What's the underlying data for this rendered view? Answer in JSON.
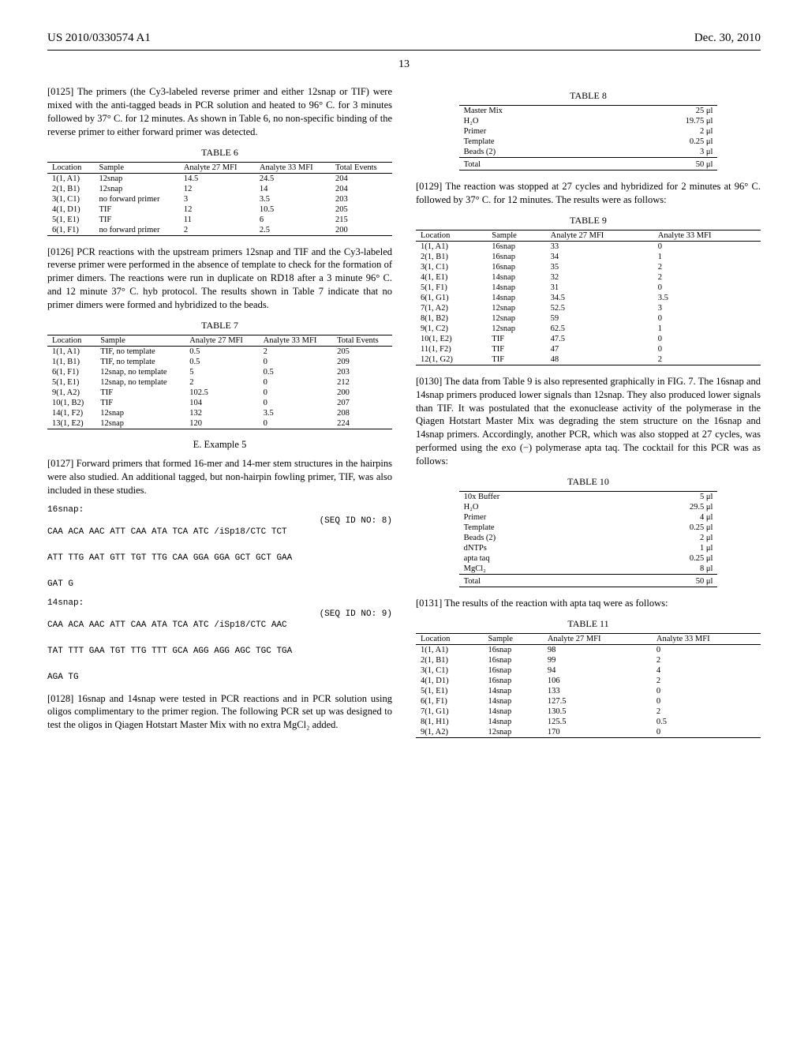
{
  "header": {
    "pub_no": "US 2010/0330574 A1",
    "date": "Dec. 30, 2010"
  },
  "page_number": "13",
  "left": {
    "p0125": "[0125]   The primers (the Cy3-labeled reverse primer and either 12snap or TIF) were mixed with the anti-tagged beads in PCR solution and heated to 96° C. for 3 minutes followed by 37° C. for 12 minutes. As shown in Table 6, no non-specific binding of the reverse primer to either forward primer was detected.",
    "table6": {
      "caption": "TABLE 6",
      "columns": [
        "Location",
        "Sample",
        "Analyte 27 MFI",
        "Analyte 33 MFI",
        "Total Events"
      ],
      "rows": [
        [
          "1(1, A1)",
          "12snap",
          "14.5",
          "24.5",
          "204"
        ],
        [
          "2(1, B1)",
          "12snap",
          "12",
          "14",
          "204"
        ],
        [
          "3(1, C1)",
          "no forward primer",
          "3",
          "3.5",
          "203"
        ],
        [
          "4(1, D1)",
          "TIF",
          "12",
          "10.5",
          "205"
        ],
        [
          "5(1, E1)",
          "TIF",
          "11",
          "6",
          "215"
        ],
        [
          "6(1, F1)",
          "no forward primer",
          "2",
          "2.5",
          "200"
        ]
      ]
    },
    "p0126": "[0126]   PCR reactions with the upstream primers 12snap and TIF and the Cy3-labeled reverse primer were performed in the absence of template to check for the formation of primer dimers. The reactions were run in duplicate on RD18 after a 3 minute 96° C. and 12 minute 37° C. hyb protocol. The results shown in Table 7 indicate that no primer dimers were formed and hybridized to the beads.",
    "table7": {
      "caption": "TABLE 7",
      "columns": [
        "Location",
        "Sample",
        "Analyte 27 MFI",
        "Analyte 33 MFI",
        "Total Events"
      ],
      "rows": [
        [
          "1(1, A1)",
          "TIF, no template",
          "0.5",
          "2",
          "205"
        ],
        [
          "1(1, B1)",
          "TIF, no template",
          "0.5",
          "0",
          "209"
        ],
        [
          "6(1, F1)",
          "12snap, no template",
          "5",
          "0.5",
          "203"
        ],
        [
          "5(1, E1)",
          "12snap, no template",
          "2",
          "0",
          "212"
        ],
        [
          "9(1, A2)",
          "TIF",
          "102.5",
          "0",
          "200"
        ],
        [
          "10(1, B2)",
          "TIF",
          "104",
          "0",
          "207"
        ],
        [
          "14(1, F2)",
          "12snap",
          "132",
          "3.5",
          "208"
        ],
        [
          "13(1, E2)",
          "12snap",
          "120",
          "0",
          "224"
        ]
      ]
    },
    "example5_heading": "E. Example 5",
    "p0127": "[0127]   Forward primers that formed 16-mer and 14-mer stem structures in the hairpins were also studied. An additional tagged, but non-hairpin fowling primer, TIF, was also included in these studies.",
    "seq16": {
      "label": "16snap:",
      "seqid": "(SEQ ID NO: 8)",
      "lines": [
        "CAA ACA AAC ATT CAA ATA TCA ATC /iSp18/CTC TCT",
        "ATT TTG AAT GTT TGT TTG CAA GGA GGA GCT GCT GAA",
        "GAT G"
      ]
    },
    "seq14": {
      "label": "14snap:",
      "seqid": "(SEQ ID NO: 9)",
      "lines": [
        "CAA ACA AAC ATT CAA ATA TCA ATC /iSp18/CTC AAC",
        "TAT TTT GAA TGT TTG TTT GCA AGG AGG AGC TGC TGA",
        "AGA TG"
      ]
    },
    "p0128": "[0128]   16snap and 14snap were tested in PCR reactions and in PCR solution using oligos complimentary to the primer region. The following PCR set up was designed to test the oligos in Qiagen Hotstart Master Mix with no extra MgCl₂ added."
  },
  "right": {
    "table8": {
      "caption": "TABLE 8",
      "rows": [
        [
          "Master Mix",
          "25 μl"
        ],
        [
          "H₂O",
          "19.75 μl"
        ],
        [
          "Primer",
          "2 μl"
        ],
        [
          "Template",
          "0.25 μl"
        ],
        [
          "Beads (2)",
          "3 μl"
        ]
      ],
      "total": [
        "Total",
        "50 μl"
      ]
    },
    "p0129": "[0129]   The reaction was stopped at 27 cycles and hybridized for 2 minutes at 96° C. followed by 37° C. for 12 minutes. The results were as follows:",
    "table9": {
      "caption": "TABLE 9",
      "columns": [
        "Location",
        "Sample",
        "Analyte 27 MFI",
        "Analyte 33 MFI"
      ],
      "rows": [
        [
          "1(1, A1)",
          "16snap",
          "33",
          "0"
        ],
        [
          "2(1, B1)",
          "16snap",
          "34",
          "1"
        ],
        [
          "3(1, C1)",
          "16snap",
          "35",
          "2"
        ],
        [
          "4(1, E1)",
          "14snap",
          "32",
          "2"
        ],
        [
          "5(1, F1)",
          "14snap",
          "31",
          "0"
        ],
        [
          "6(1, G1)",
          "14snap",
          "34.5",
          "3.5"
        ],
        [
          "7(1, A2)",
          "12snap",
          "52.5",
          "3"
        ],
        [
          "8(1, B2)",
          "12snap",
          "59",
          "0"
        ],
        [
          "9(1, C2)",
          "12snap",
          "62.5",
          "1"
        ],
        [
          "10(1, E2)",
          "TIF",
          "47.5",
          "0"
        ],
        [
          "11(1, F2)",
          "TIF",
          "47",
          "0"
        ],
        [
          "12(1, G2)",
          "TIF",
          "48",
          "2"
        ]
      ]
    },
    "p0130": "[0130]   The data from Table 9 is also represented graphically in FIG. 7. The 16snap and 14snap primers produced lower signals than 12snap. They also produced lower signals than TIF. It was postulated that the exonuclease activity of the polymerase in the Qiagen Hotstart Master Mix was degrading the stem structure on the 16snap and 14snap primers. Accordingly, another PCR, which was also stopped at 27 cycles, was performed using the exo (−) polymerase apta taq. The cocktail for this PCR was as follows:",
    "table10": {
      "caption": "TABLE 10",
      "rows": [
        [
          "10x Buffer",
          "5 μl"
        ],
        [
          "H₂O",
          "29.5 μl"
        ],
        [
          "Primer",
          "4 μl"
        ],
        [
          "Template",
          "0.25 μl"
        ],
        [
          "Beads (2)",
          "2 μl"
        ],
        [
          "dNTPs",
          "1 μl"
        ],
        [
          "apta taq",
          "0.25 μl"
        ],
        [
          "MgCl₂",
          "8 μl"
        ]
      ],
      "total": [
        "Total",
        "50 μl"
      ]
    },
    "p0131": "[0131]   The results of the reaction with apta taq were as follows:",
    "table11": {
      "caption": "TABLE 11",
      "columns": [
        "Location",
        "Sample",
        "Analyte 27 MFI",
        "Analyte 33 MFI"
      ],
      "rows": [
        [
          "1(1, A1)",
          "16snap",
          "98",
          "0"
        ],
        [
          "2(1, B1)",
          "16snap",
          "99",
          "2"
        ],
        [
          "3(1, C1)",
          "16snap",
          "94",
          "4"
        ],
        [
          "4(1, D1)",
          "16snap",
          "106",
          "2"
        ],
        [
          "5(1, E1)",
          "14snap",
          "133",
          "0"
        ],
        [
          "6(1, F1)",
          "14snap",
          "127.5",
          "0"
        ],
        [
          "7(1, G1)",
          "14snap",
          "130.5",
          "2"
        ],
        [
          "8(1, H1)",
          "14snap",
          "125.5",
          "0.5"
        ],
        [
          "9(1, A2)",
          "12snap",
          "170",
          "0"
        ]
      ]
    }
  }
}
